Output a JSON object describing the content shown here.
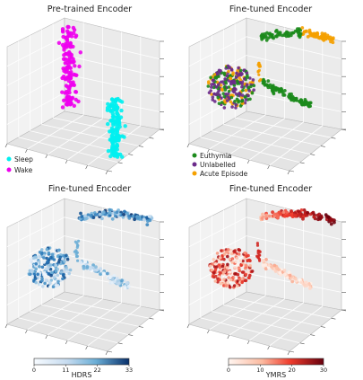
{
  "chart_data": [
    {
      "type": "scatter",
      "title": "Pre-trained Encoder",
      "projection": "3d",
      "grid": true,
      "legend_placement": "bottom-left",
      "series": [
        {
          "name": "Sleep",
          "color": "#00f0f0",
          "cluster": "right-vertical-column"
        },
        {
          "name": "Wake",
          "color": "#ee00ee",
          "cluster": "left-vertical-column"
        }
      ]
    },
    {
      "type": "scatter",
      "title": "Fine-tuned Encoder",
      "projection": "3d",
      "grid": true,
      "legend_placement": "bottom-left",
      "series": [
        {
          "name": "Euthymia",
          "color": "#1b8a1b"
        },
        {
          "name": "Unlabelled",
          "color": "#6b2a8a"
        },
        {
          "name": "Acute Episode",
          "color": "#f5a000"
        }
      ]
    },
    {
      "type": "scatter",
      "title": "Fine-tuned Encoder",
      "projection": "3d",
      "grid": true,
      "colorbar": {
        "label": "HDRS",
        "ticks": [
          0,
          11,
          22,
          33
        ],
        "range": [
          0,
          33
        ],
        "colormap": "Blues"
      }
    },
    {
      "type": "scatter",
      "title": "Fine-tuned Encoder",
      "projection": "3d",
      "grid": true,
      "colorbar": {
        "label": "YMRS",
        "ticks": [
          0,
          10,
          20,
          30
        ],
        "range": [
          0,
          30
        ],
        "colormap": "Reds"
      }
    }
  ]
}
